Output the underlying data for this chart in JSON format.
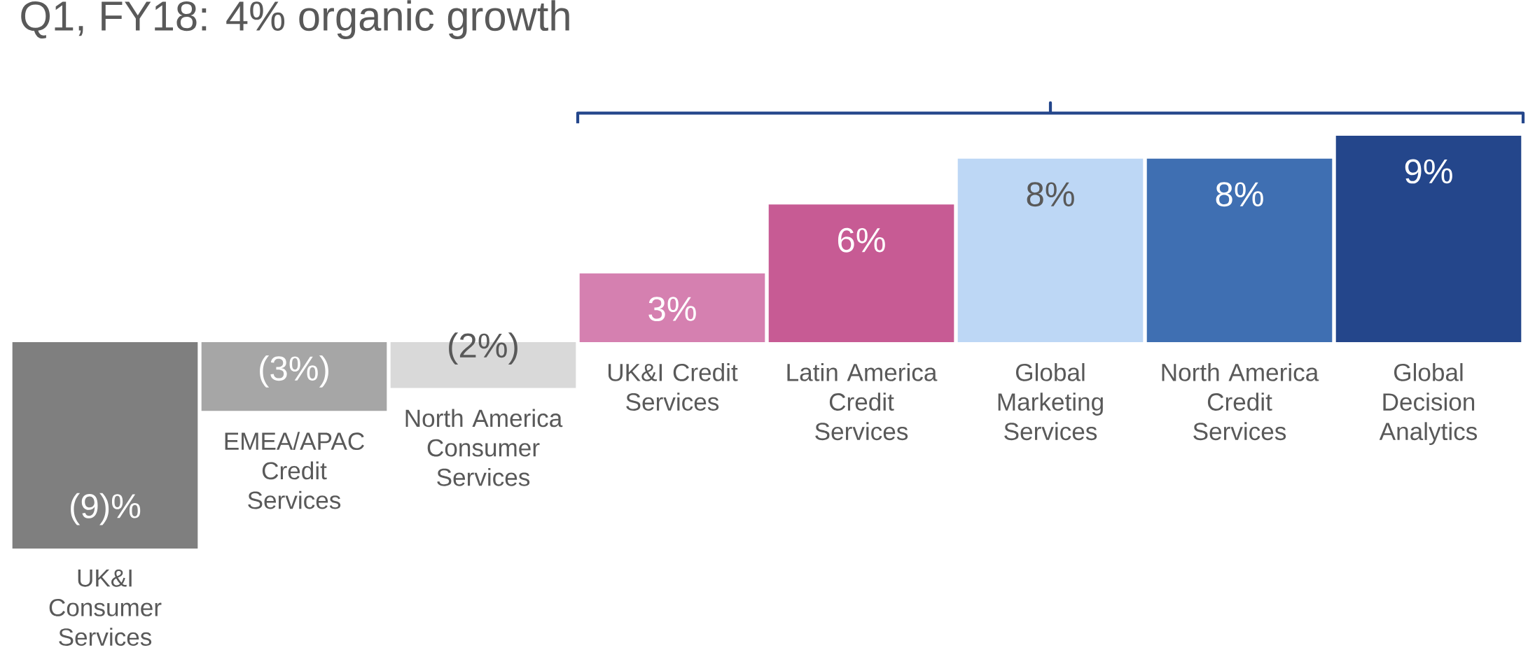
{
  "chart_data": {
    "type": "bar",
    "title": "Q1, FY18: 4% organic growth",
    "categories": [
      "UK&I Consumer Services",
      "EMEA/APAC Credit Services",
      "North America Consumer Services",
      "UK&I Credit Services",
      "Latin America Credit Services",
      "Global Marketing Services",
      "North America Credit Services",
      "Global Decision Analytics"
    ],
    "values": [
      -9,
      -3,
      -2,
      3,
      6,
      8,
      8,
      9
    ],
    "value_labels": [
      "(9)%",
      "(3%)",
      "(2%)",
      "3%",
      "6%",
      "8%",
      "8%",
      "9%"
    ],
    "colors": [
      "#7f7f7f",
      "#a6a6a6",
      "#d9d9d9",
      "#d580b0",
      "#c75b94",
      "#bdd7f5",
      "#3f6fb2",
      "#24468b"
    ]
  }
}
